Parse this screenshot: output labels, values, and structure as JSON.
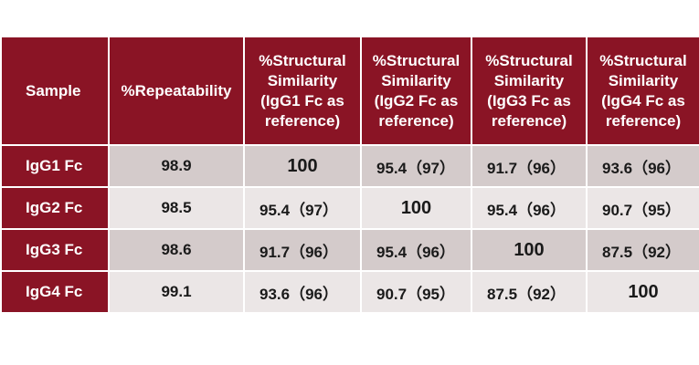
{
  "headers": [
    "Sample",
    "%Repeatability",
    "%Structural Similarity (IgG1 Fc as reference)",
    "%Structural Similarity (IgG2 Fc as reference)",
    "%Structural Similarity (IgG3 Fc as reference)",
    "%Structural Similarity (IgG4 Fc as reference)"
  ],
  "rows": [
    {
      "sample": "IgG1 Fc",
      "repeatability": "98.9",
      "sim": [
        "100",
        "95.4（97）",
        "91.7（96）",
        "93.6（96）"
      ]
    },
    {
      "sample": "IgG2 Fc",
      "repeatability": "98.5",
      "sim": [
        "95.4（97）",
        "100",
        "95.4（96）",
        "90.7（95）"
      ]
    },
    {
      "sample": "IgG3 Fc",
      "repeatability": "98.6",
      "sim": [
        "91.7（96）",
        "95.4（96）",
        "100",
        "87.5（92）"
      ]
    },
    {
      "sample": "IgG4 Fc",
      "repeatability": "99.1",
      "sim": [
        "93.6（96）",
        "90.7（95）",
        "87.5（92）",
        "100"
      ]
    }
  ],
  "colors": {
    "header_bg": "#8a1425",
    "header_text": "#ffffff",
    "row_odd_bg": "#d4cbcb",
    "row_even_bg": "#ebe6e6"
  }
}
